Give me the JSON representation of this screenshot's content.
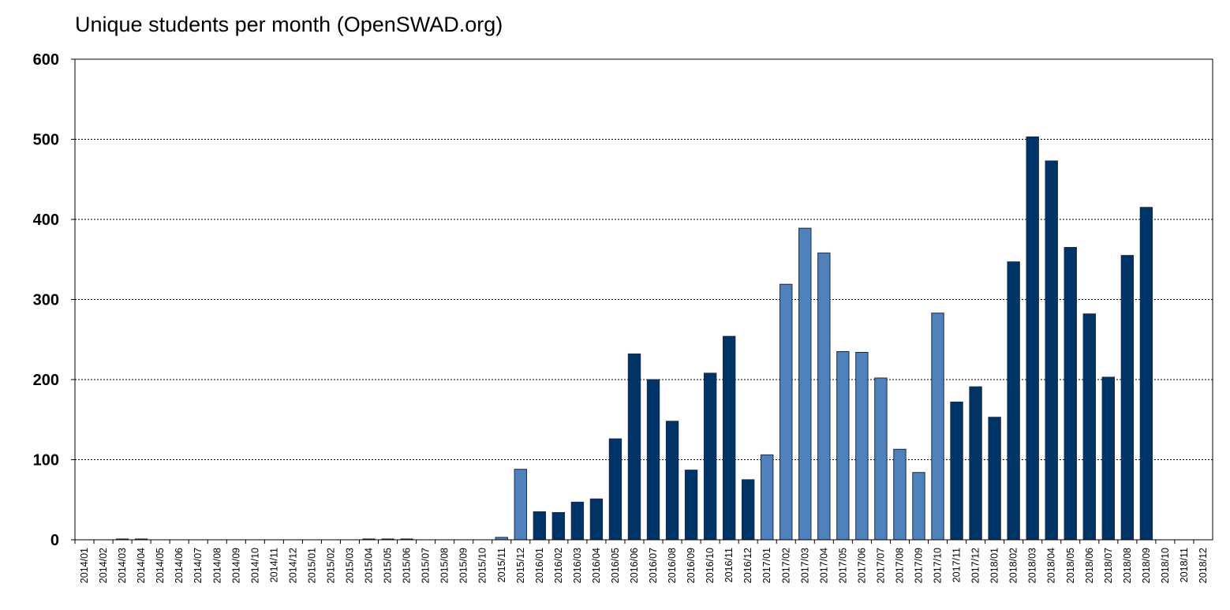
{
  "chart_data": {
    "type": "bar",
    "title": "Unique students per month (OpenSWAD.org)",
    "xlabel": "",
    "ylabel": "",
    "ylim": [
      0,
      600
    ],
    "yticks": [
      0,
      100,
      200,
      300,
      400,
      500,
      600
    ],
    "grid": "horizontal dotted",
    "legend": "none",
    "colors": {
      "odd": "#4f81bd",
      "even": "#003366"
    },
    "categories": [
      "2014/01",
      "2014/02",
      "2014/03",
      "2014/04",
      "2014/05",
      "2014/06",
      "2014/07",
      "2014/08",
      "2014/09",
      "2014/10",
      "2014/11",
      "2014/12",
      "2015/01",
      "2015/02",
      "2015/03",
      "2015/04",
      "2015/05",
      "2015/06",
      "2015/07",
      "2015/08",
      "2015/09",
      "2015/10",
      "2015/11",
      "2015/12",
      "2016/01",
      "2016/02",
      "2016/03",
      "2016/04",
      "2016/05",
      "2016/06",
      "2016/07",
      "2016/08",
      "2016/09",
      "2016/10",
      "2016/11",
      "2016/12",
      "2017/01",
      "2017/02",
      "2017/03",
      "2017/04",
      "2017/05",
      "2017/06",
      "2017/07",
      "2017/08",
      "2017/09",
      "2017/10",
      "2017/11",
      "2017/12",
      "2018/01",
      "2018/02",
      "2018/03",
      "2018/04",
      "2018/05",
      "2018/06",
      "2018/07",
      "2018/08",
      "2018/09",
      "2018/10",
      "2018/11",
      "2018/12"
    ],
    "values": [
      0,
      0,
      1,
      1,
      0,
      0,
      0,
      0,
      0,
      0,
      0,
      0,
      0,
      0,
      0,
      1,
      1,
      1,
      0,
      0,
      0,
      0,
      3,
      88,
      35,
      34,
      47,
      51,
      126,
      232,
      200,
      148,
      87,
      208,
      254,
      75,
      106,
      319,
      389,
      358,
      235,
      234,
      202,
      113,
      84,
      283,
      172,
      191,
      153,
      347,
      503,
      473,
      365,
      282,
      203,
      355,
      415,
      0,
      0,
      0
    ],
    "bar_colors": [
      "light",
      "light",
      "light",
      "light",
      "light",
      "light",
      "light",
      "light",
      "light",
      "light",
      "light",
      "light",
      "light",
      "light",
      "light",
      "light",
      "light",
      "light",
      "light",
      "light",
      "light",
      "light",
      "light",
      "light",
      "dark",
      "dark",
      "dark",
      "dark",
      "dark",
      "dark",
      "dark",
      "dark",
      "dark",
      "dark",
      "dark",
      "dark",
      "light",
      "light",
      "light",
      "light",
      "light",
      "light",
      "light",
      "light",
      "light",
      "light",
      "dark",
      "dark",
      "dark",
      "dark",
      "dark",
      "dark",
      "dark",
      "dark",
      "dark",
      "dark",
      "dark",
      "dark",
      "dark",
      "dark"
    ]
  }
}
